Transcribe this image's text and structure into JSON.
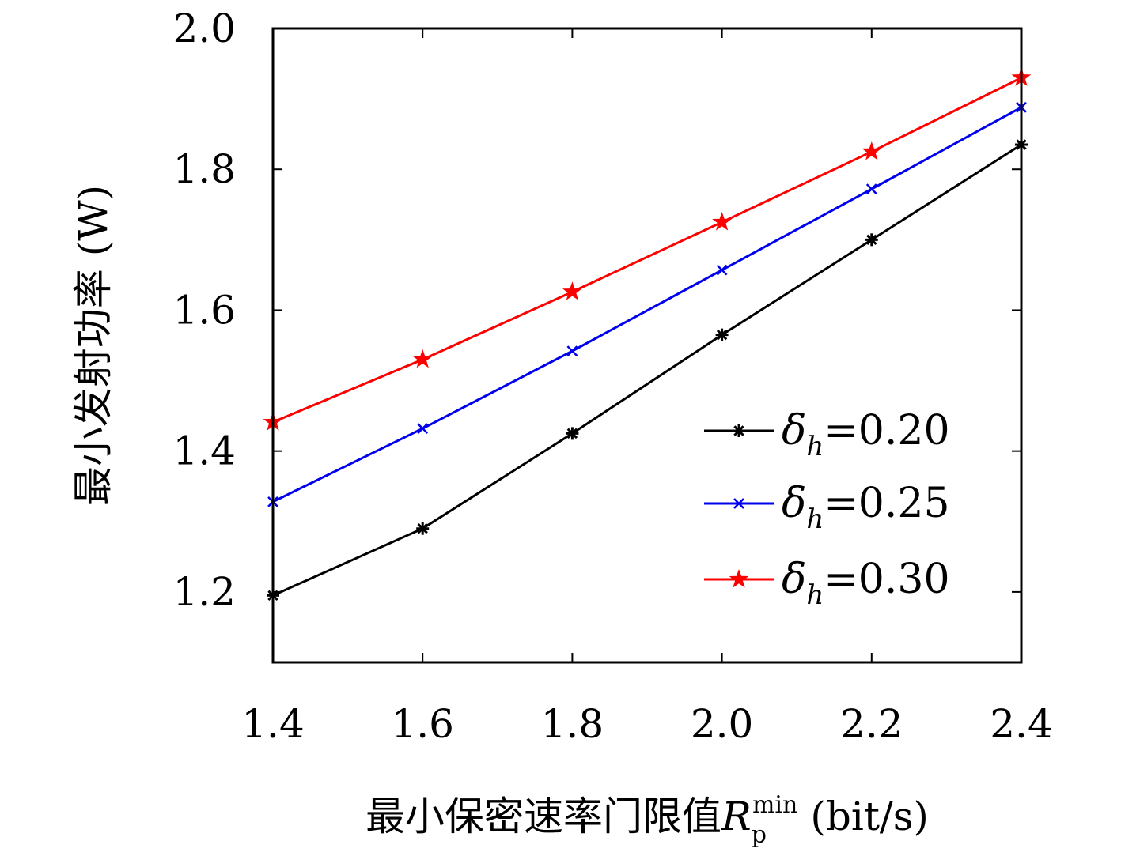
{
  "chart_data": {
    "type": "line",
    "x": [
      1.4,
      1.6,
      1.8,
      2.0,
      2.2,
      2.4
    ],
    "x_tick_labels": [
      "1.4",
      "1.6",
      "1.8",
      "2.0",
      "2.2",
      "2.4"
    ],
    "y_tick_labels": [
      "1.2",
      "1.4",
      "1.6",
      "1.8",
      "2.0"
    ],
    "y_ticks": [
      1.2,
      1.4,
      1.6,
      1.8,
      2.0
    ],
    "xlim": [
      1.4,
      2.4
    ],
    "ylim": [
      1.1,
      2.0
    ],
    "xlabel": {
      "prefix": "最小保密速率门限值",
      "symbol": "R",
      "subscript": "p",
      "superscript": "min",
      "unit": "(bit/s)"
    },
    "ylabel": "最小发射功率 (W)",
    "grid": false,
    "legend_position": "lower-right",
    "series": [
      {
        "name": "δh=0.20",
        "legend": {
          "symbol": "δ",
          "subscript": "h",
          "text": "=0.20"
        },
        "color": "#000000",
        "marker": "asterisk",
        "values": [
          1.195,
          1.29,
          1.425,
          1.565,
          1.7,
          1.835
        ]
      },
      {
        "name": "δh=0.25",
        "legend": {
          "symbol": "δ",
          "subscript": "h",
          "text": "=0.25"
        },
        "color": "#0000ee",
        "marker": "cross",
        "values": [
          1.328,
          1.432,
          1.542,
          1.657,
          1.772,
          1.888
        ]
      },
      {
        "name": "δh=0.30",
        "legend": {
          "symbol": "δ",
          "subscript": "h",
          "text": "=0.30"
        },
        "color": "#ff0000",
        "marker": "star",
        "values": [
          1.441,
          1.53,
          1.626,
          1.725,
          1.825,
          1.93
        ]
      }
    ]
  }
}
